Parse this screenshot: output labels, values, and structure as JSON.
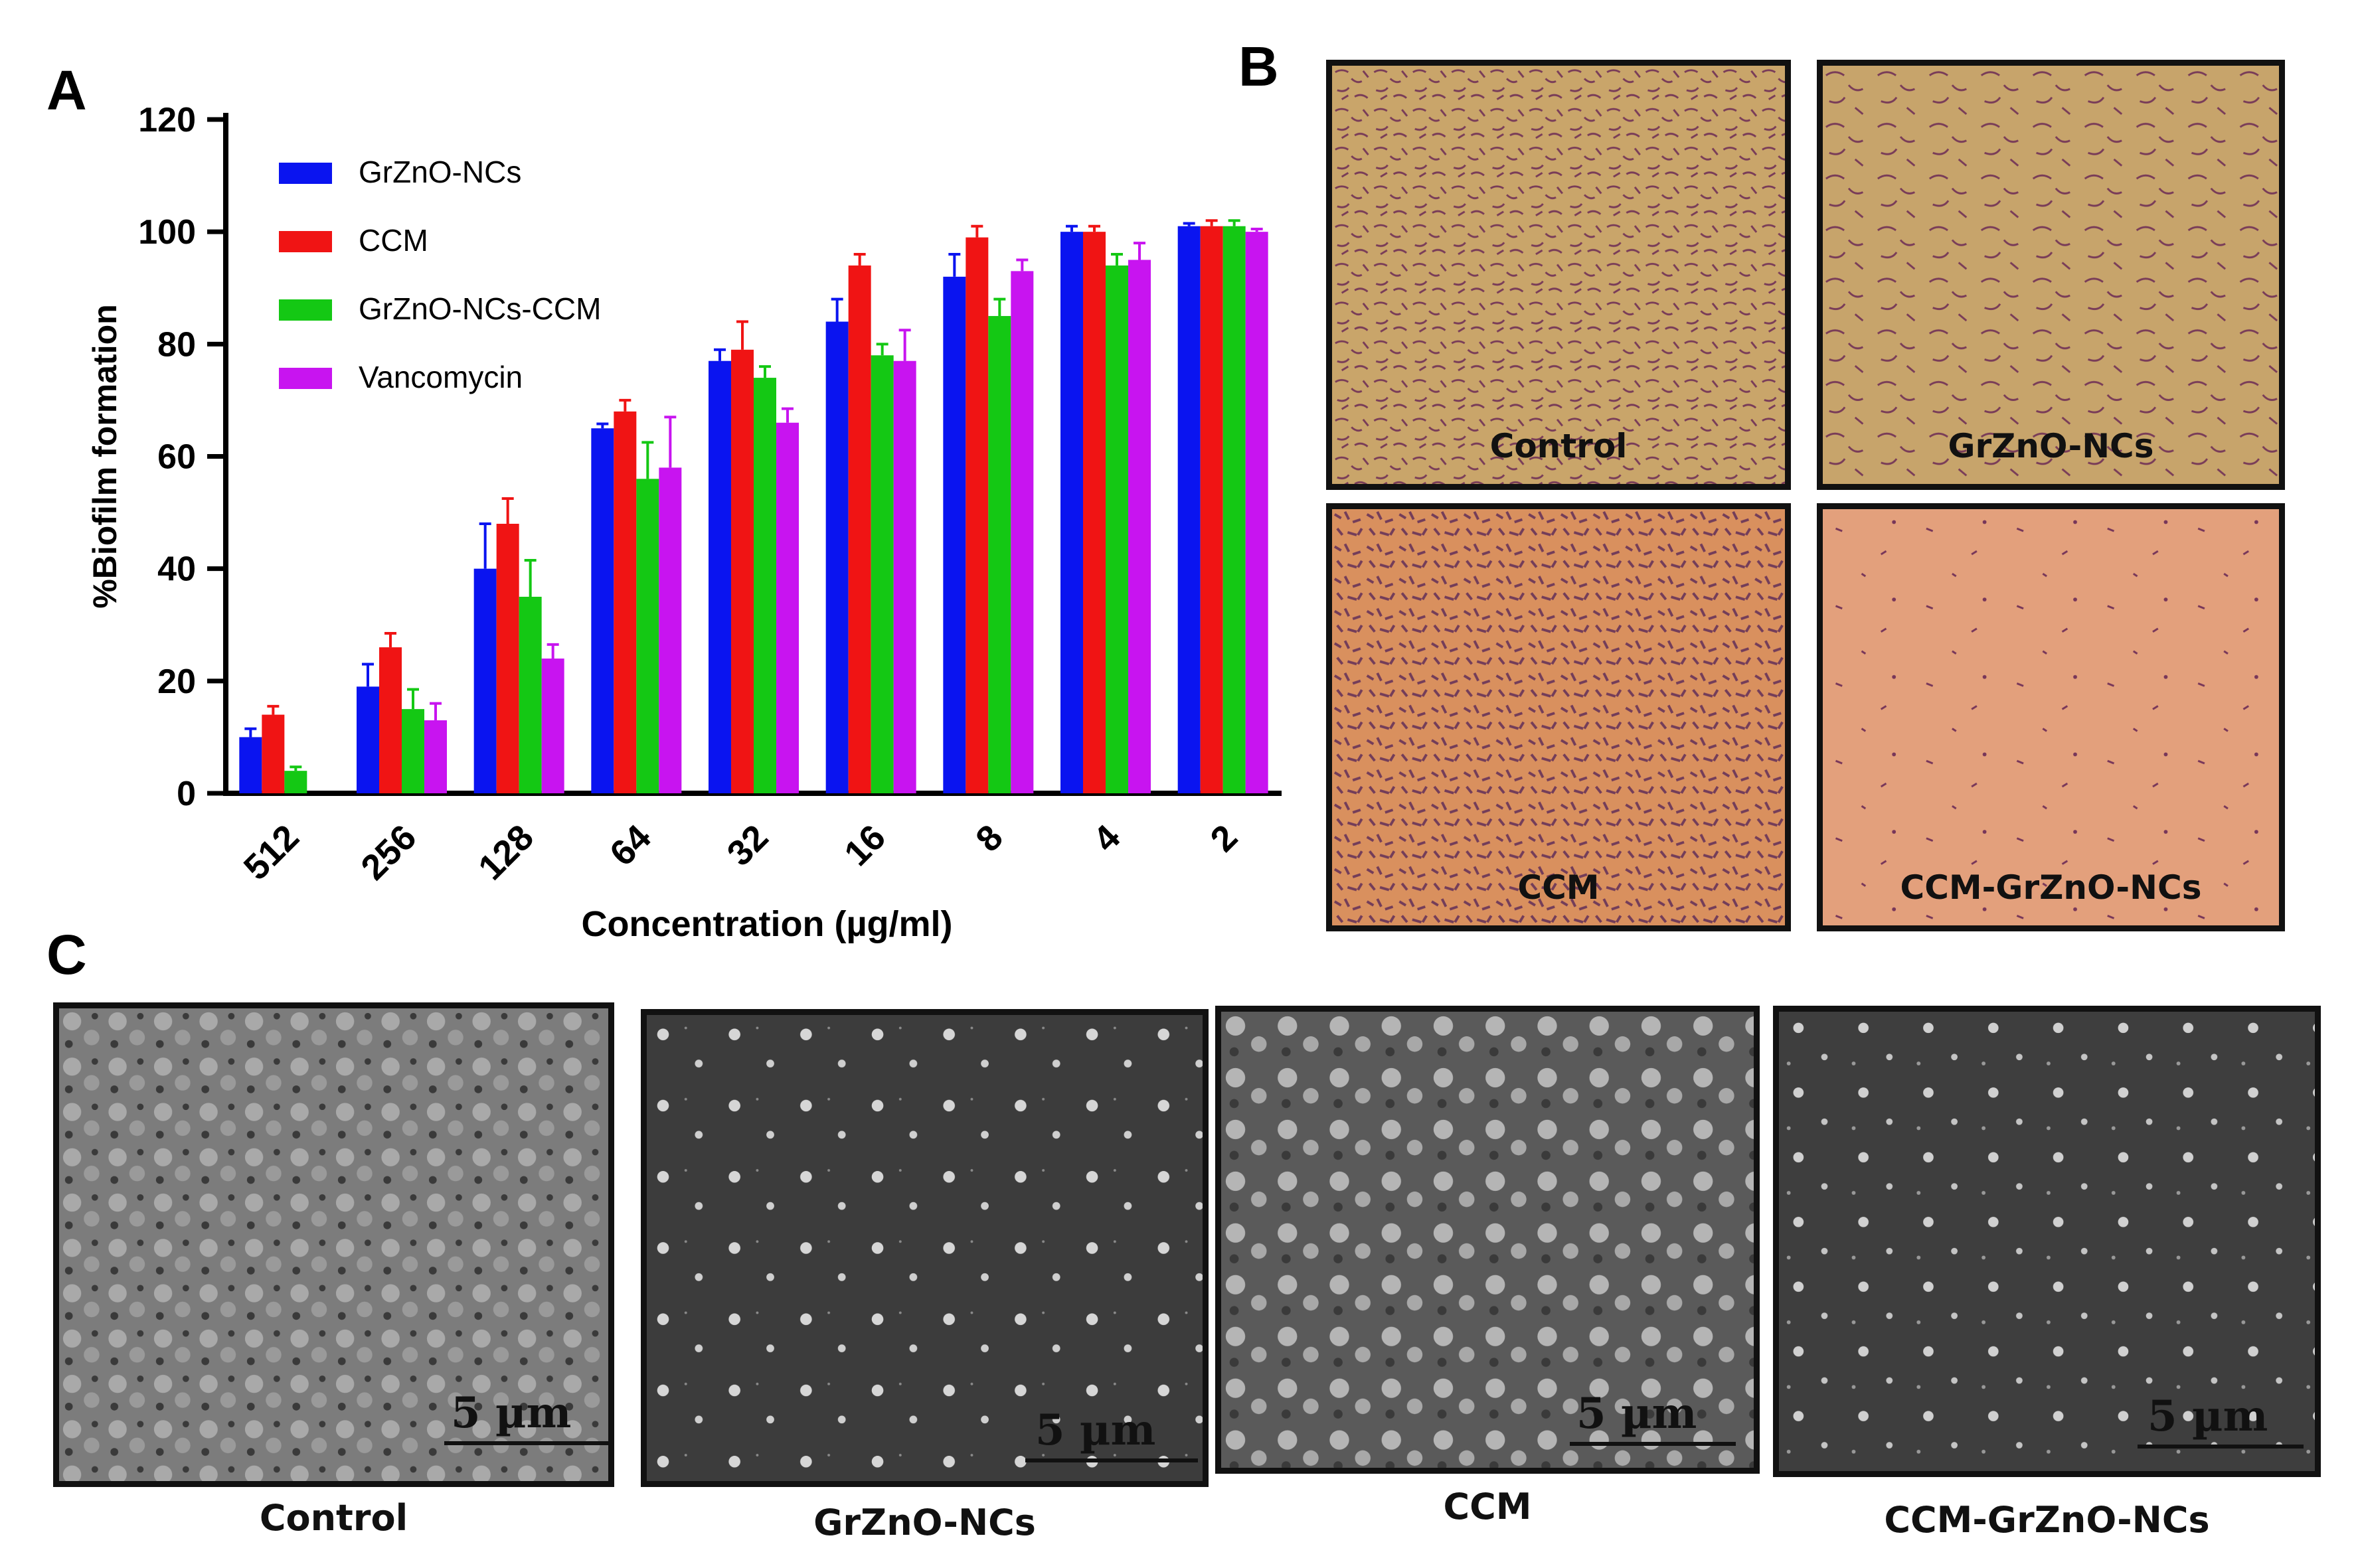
{
  "panels": {
    "a_letter": "A",
    "b_letter": "B",
    "c_letter": "C"
  },
  "chart_data": {
    "type": "bar",
    "xlabel": "Concentration (µg/ml)",
    "ylabel": "%Biofilm formation",
    "ylim": [
      0,
      120
    ],
    "yticks": [
      0,
      20,
      40,
      60,
      80,
      100,
      120
    ],
    "grid": false,
    "legend_position": "top-left",
    "categories": [
      "512",
      "256",
      "128",
      "64",
      "32",
      "16",
      "8",
      "4",
      "2"
    ],
    "series": [
      {
        "name": "GrZnO-NCs",
        "color": "#0a14f0",
        "values": [
          10,
          19,
          40,
          65,
          77,
          84,
          92,
          100,
          101
        ],
        "errors": [
          1.5,
          4,
          8,
          0.8,
          2,
          4,
          4,
          1,
          0.5
        ]
      },
      {
        "name": "CCM",
        "color": "#f01414",
        "values": [
          14,
          26,
          48,
          68,
          79,
          94,
          99,
          100,
          101
        ],
        "errors": [
          1.5,
          2.5,
          4.5,
          2,
          5,
          2,
          2,
          1,
          1
        ]
      },
      {
        "name": "GrZnO-NCs-CCM",
        "color": "#14c814",
        "values": [
          4,
          15,
          35,
          56,
          74,
          78,
          85,
          94,
          101
        ],
        "errors": [
          0.7,
          3.5,
          6.5,
          6.5,
          2,
          2,
          3,
          2,
          1
        ]
      },
      {
        "name": "Vancomycin",
        "color": "#c814f0",
        "values": [
          0,
          13,
          24,
          58,
          66,
          77,
          93,
          95,
          100
        ],
        "errors": [
          0,
          3,
          2.5,
          9,
          2.5,
          5.5,
          2,
          3,
          0.5
        ]
      }
    ]
  },
  "light_micrographs": [
    {
      "label": "Control"
    },
    {
      "label": "GrZnO-NCs"
    },
    {
      "label": "CCM"
    },
    {
      "label": "CCM-GrZnO-NCs"
    }
  ],
  "sem_images": [
    {
      "caption": "Control",
      "scale": "5 µm"
    },
    {
      "caption": "GrZnO-NCs",
      "scale": "5 µm"
    },
    {
      "caption": "CCM",
      "scale": "5 µm"
    },
    {
      "caption": "CCM-GrZnO-NCs",
      "scale": "5 µm"
    }
  ]
}
